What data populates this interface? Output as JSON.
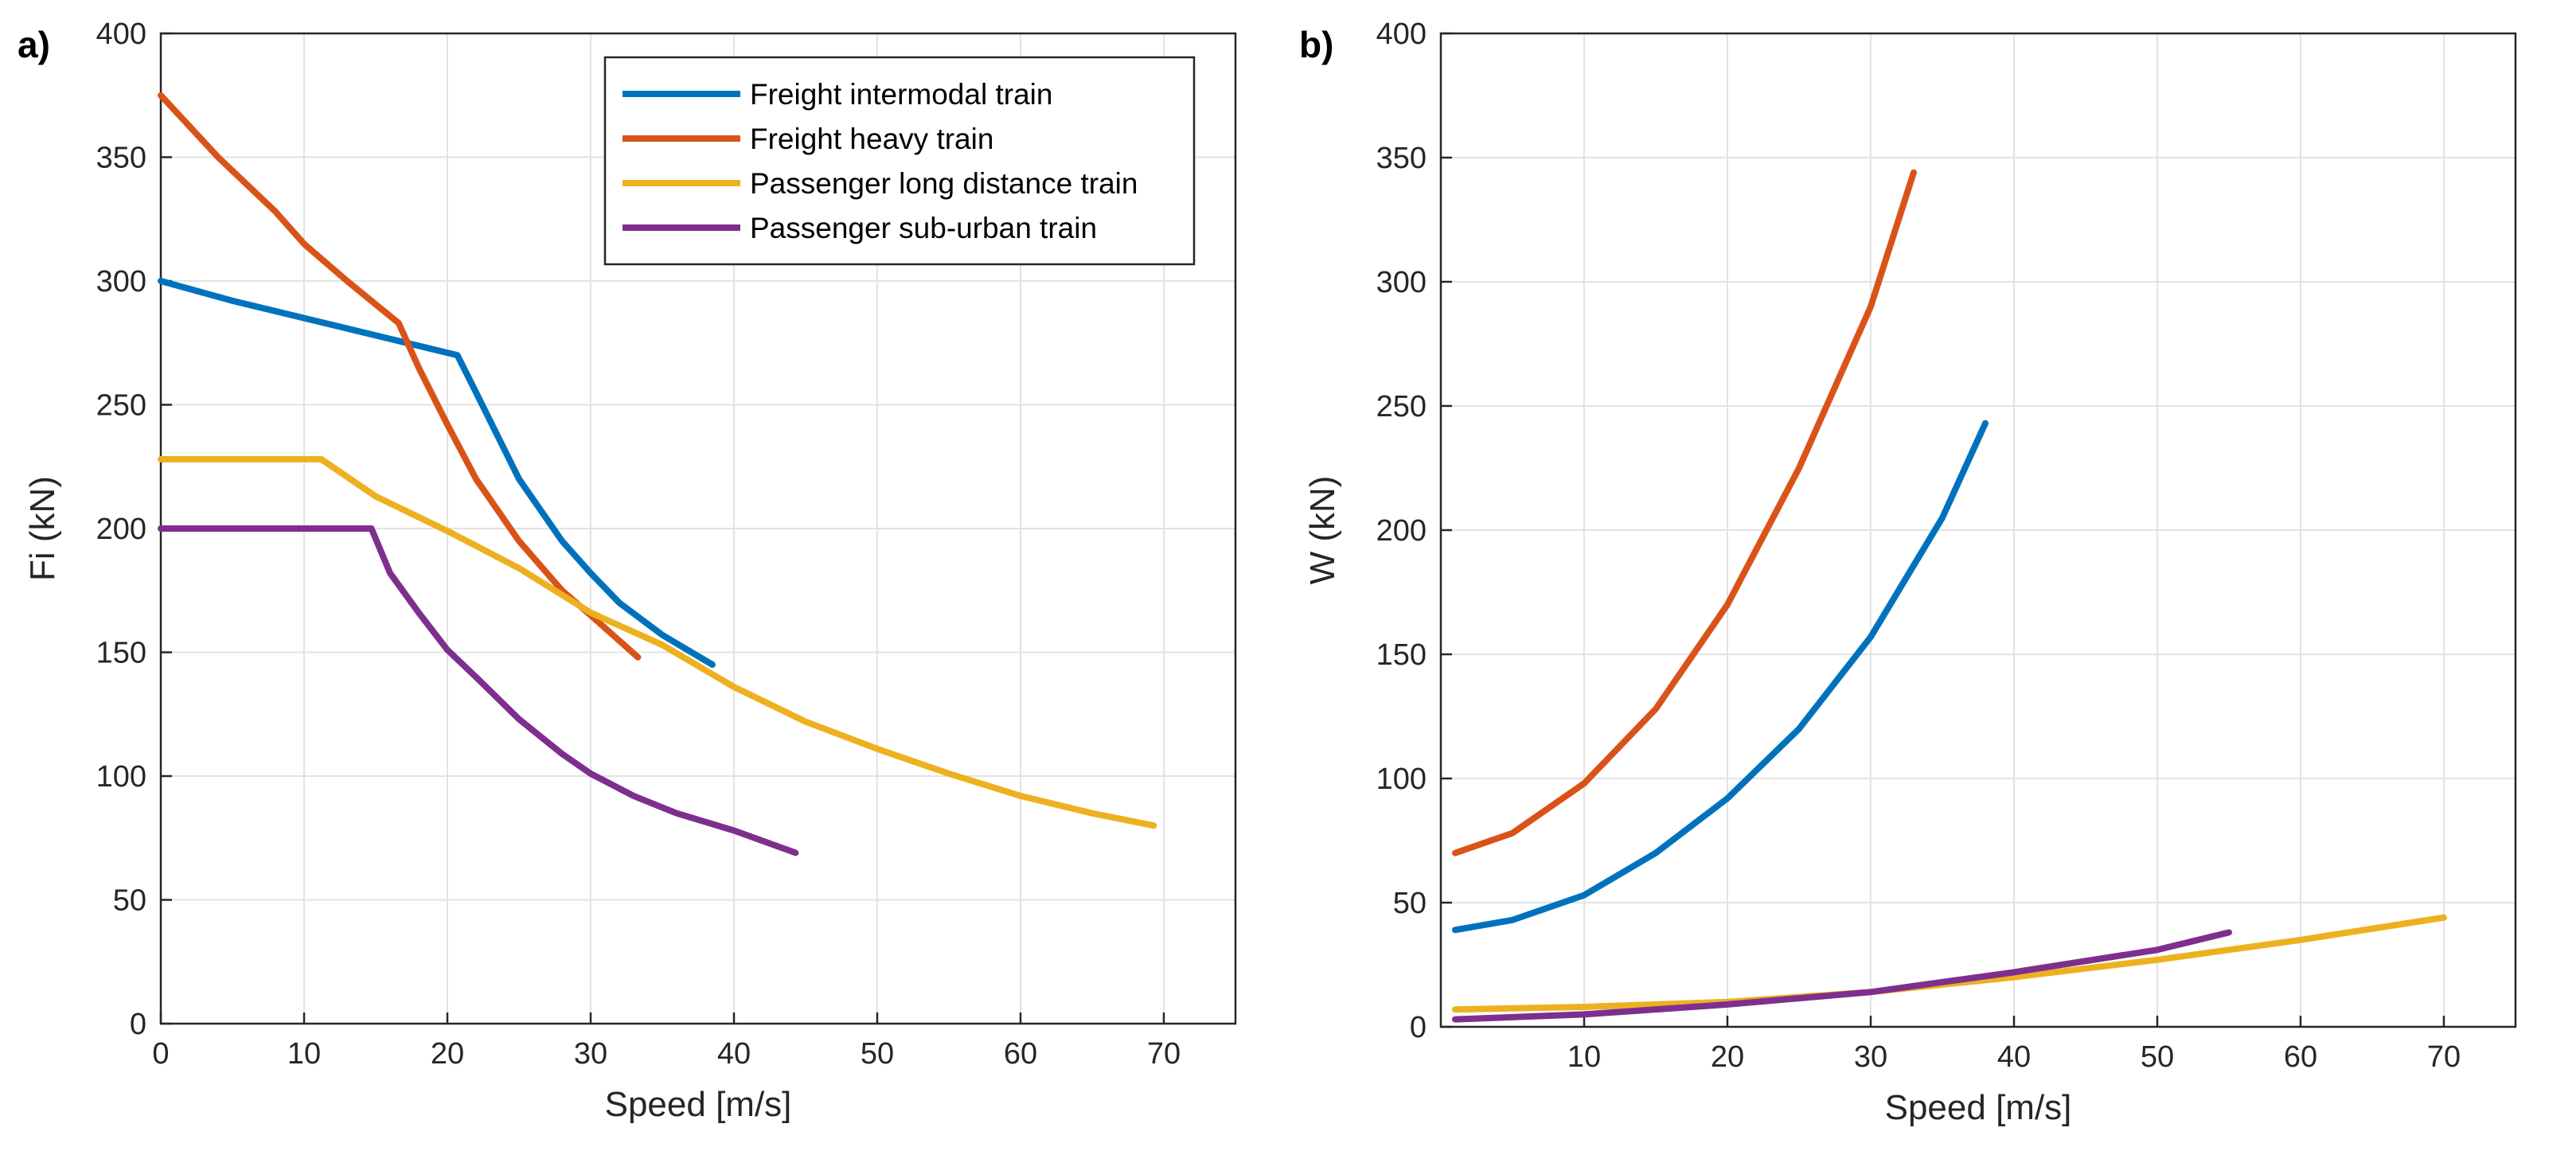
{
  "chart_data": [
    {
      "type": "line",
      "panel_label": "a)",
      "xlabel": "Speed [m/s]",
      "ylabel": "Fi (kN)",
      "xlim": [
        0,
        75
      ],
      "ylim": [
        0,
        400
      ],
      "xticks": [
        0,
        10,
        20,
        30,
        40,
        50,
        60,
        70
      ],
      "yticks": [
        0,
        50,
        100,
        150,
        200,
        250,
        300,
        350,
        400
      ],
      "grid": true,
      "legend": "top-right",
      "series": [
        {
          "name": "Freight intermodal train",
          "color": "#0072BD",
          "points": [
            [
              0,
              300
            ],
            [
              5,
              292
            ],
            [
              10,
              285
            ],
            [
              15,
              278
            ],
            [
              20.7,
              270
            ],
            [
              22,
              255
            ],
            [
              25,
              220
            ],
            [
              28,
              195
            ],
            [
              30,
              182
            ],
            [
              32,
              170
            ],
            [
              35,
              157
            ],
            [
              38.5,
              145
            ]
          ]
        },
        {
          "name": "Freight heavy train",
          "color": "#D95319",
          "points": [
            [
              0,
              375
            ],
            [
              4,
              350
            ],
            [
              8,
              328
            ],
            [
              10,
              315
            ],
            [
              13,
              300
            ],
            [
              16.6,
              283
            ],
            [
              18,
              265
            ],
            [
              20,
              242
            ],
            [
              22,
              220
            ],
            [
              25,
              195
            ],
            [
              28,
              175
            ],
            [
              30,
              165
            ],
            [
              33.3,
              148
            ]
          ]
        },
        {
          "name": "Passenger long distance train",
          "color": "#EDB120",
          "points": [
            [
              0,
              228
            ],
            [
              11.2,
              228
            ],
            [
              15,
              213
            ],
            [
              20,
              199
            ],
            [
              25,
              184
            ],
            [
              30,
              166
            ],
            [
              35,
              153
            ],
            [
              40,
              136
            ],
            [
              45,
              122
            ],
            [
              50,
              111
            ],
            [
              55,
              101
            ],
            [
              60,
              92
            ],
            [
              65,
              85
            ],
            [
              69.3,
              80
            ]
          ]
        },
        {
          "name": "Passenger sub-urban train",
          "color": "#7E2F8E",
          "points": [
            [
              0,
              200
            ],
            [
              14.7,
              200
            ],
            [
              16,
              182
            ],
            [
              18,
              166
            ],
            [
              20,
              151
            ],
            [
              22,
              140
            ],
            [
              25,
              123
            ],
            [
              28,
              109
            ],
            [
              30,
              101
            ],
            [
              33,
              92
            ],
            [
              36,
              85
            ],
            [
              40,
              78
            ],
            [
              44.3,
              69
            ]
          ]
        }
      ]
    },
    {
      "type": "line",
      "panel_label": "b)",
      "xlabel": "Speed [m/s]",
      "ylabel": "W (kN)",
      "xlim": [
        0,
        75
      ],
      "ylim": [
        0,
        400
      ],
      "xticks": [
        10,
        20,
        30,
        40,
        50,
        60,
        70
      ],
      "yticks": [
        0,
        50,
        100,
        150,
        200,
        250,
        300,
        350,
        400
      ],
      "grid": true,
      "series": [
        {
          "color": "#0072BD",
          "points": [
            [
              1,
              39
            ],
            [
              5,
              43
            ],
            [
              10,
              53
            ],
            [
              15,
              70
            ],
            [
              20,
              92
            ],
            [
              25,
              120
            ],
            [
              30,
              157
            ],
            [
              35,
              205
            ],
            [
              38,
              243
            ]
          ]
        },
        {
          "color": "#D95319",
          "points": [
            [
              1,
              70
            ],
            [
              5,
              78
            ],
            [
              10,
              98
            ],
            [
              15,
              128
            ],
            [
              20,
              170
            ],
            [
              25,
              225
            ],
            [
              30,
              290
            ],
            [
              33,
              344
            ]
          ]
        },
        {
          "color": "#EDB120",
          "points": [
            [
              1,
              7
            ],
            [
              10,
              8
            ],
            [
              20,
              10
            ],
            [
              30,
              14
            ],
            [
              40,
              20
            ],
            [
              50,
              27
            ],
            [
              60,
              35
            ],
            [
              70,
              44
            ]
          ]
        },
        {
          "color": "#7E2F8E",
          "points": [
            [
              1,
              3
            ],
            [
              10,
              5
            ],
            [
              20,
              9
            ],
            [
              30,
              14
            ],
            [
              40,
              22
            ],
            [
              50,
              31
            ],
            [
              55,
              38
            ]
          ]
        }
      ]
    }
  ]
}
